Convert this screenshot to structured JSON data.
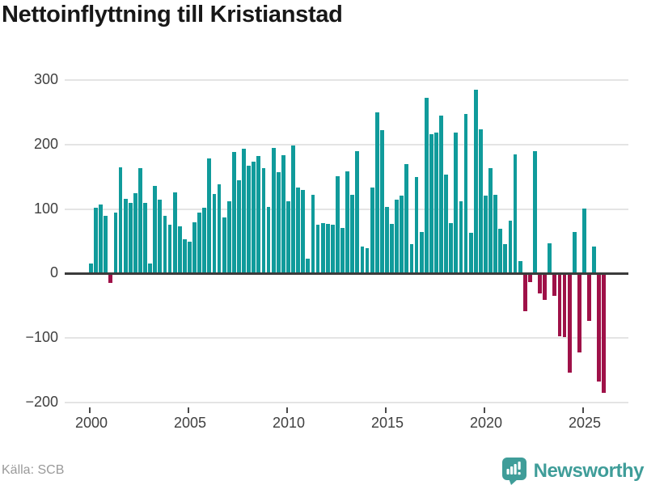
{
  "header": {
    "title": "Nettoinflyttning till Kristianstad"
  },
  "chart_data": {
    "type": "bar",
    "title": "Nettoinflyttning till Kristianstad",
    "frequency": "quarterly",
    "start_period": "2000-Q1",
    "end_period": "2026-Q1",
    "values": [
      15,
      102,
      107,
      90,
      -13,
      95,
      165,
      116,
      110,
      124,
      164,
      110,
      16,
      136,
      115,
      89,
      76,
      126,
      73,
      53,
      50,
      80,
      94,
      102,
      178,
      123,
      138,
      87,
      112,
      189,
      145,
      193,
      167,
      173,
      182,
      164,
      103,
      195,
      157,
      183,
      112,
      199,
      133,
      130,
      23,
      122,
      76,
      78,
      77,
      76,
      151,
      71,
      158,
      122,
      190,
      42,
      39,
      133,
      250,
      222,
      103,
      77,
      115,
      121,
      170,
      46,
      150,
      65,
      272,
      216,
      218,
      245,
      153,
      78,
      219,
      112,
      247,
      63,
      285,
      223,
      121,
      164,
      122,
      70,
      46,
      82,
      185,
      19,
      -56,
      -12,
      190,
      -29,
      -39,
      47,
      -33,
      -96,
      -97,
      -152,
      65,
      -121,
      101,
      -71,
      42,
      -165,
      -183
    ],
    "yticks": [
      300,
      200,
      100,
      0,
      -100,
      -200
    ],
    "ylim": [
      -200,
      300
    ],
    "xticks": [
      {
        "label": "2000",
        "index": 0
      },
      {
        "label": "2005",
        "index": 20
      },
      {
        "label": "2010",
        "index": 40
      },
      {
        "label": "2015",
        "index": 60
      },
      {
        "label": "2020",
        "index": 80
      },
      {
        "label": "2025",
        "index": 100
      }
    ],
    "grid": true,
    "legend": "none",
    "positive_color": "#109b9b",
    "negative_color": "#9f1148"
  },
  "footer": {
    "source": "Källa: SCB",
    "brand": {
      "name": "Newsworthy",
      "color": "#3f9d99",
      "icon": "newsworthy-chart-bubble-logo"
    }
  }
}
